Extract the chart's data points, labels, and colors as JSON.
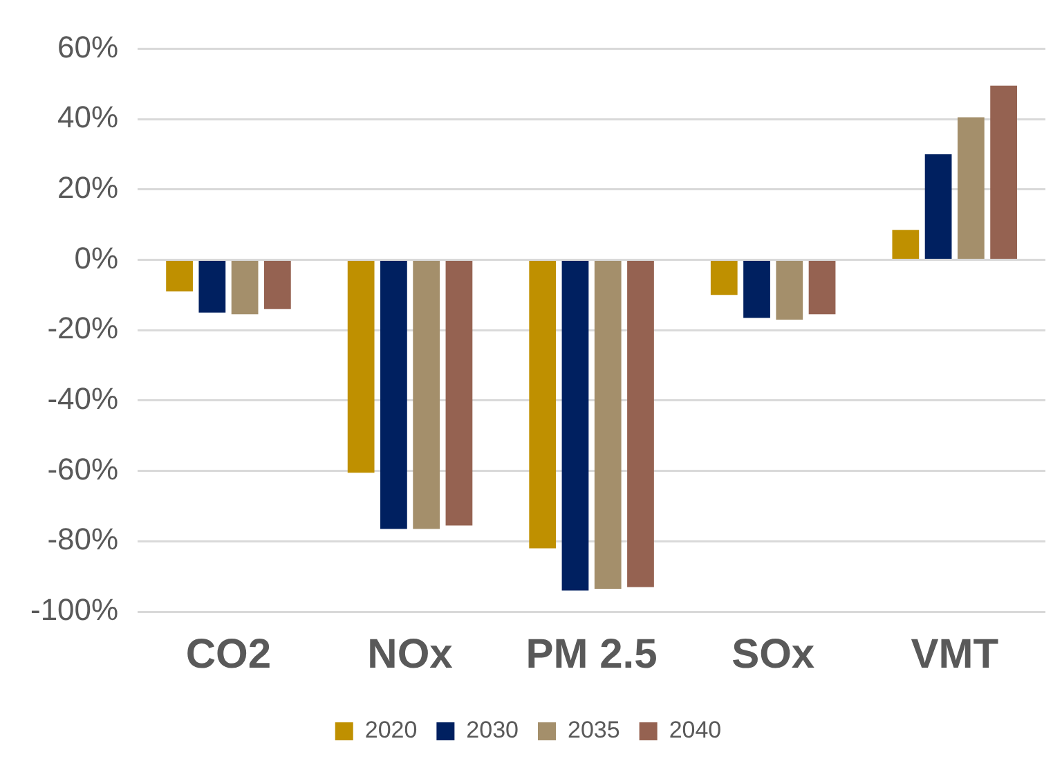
{
  "chart_data": {
    "type": "bar",
    "categories": [
      "CO2",
      "NOx",
      "PM 2.5",
      "SOx",
      "VMT"
    ],
    "series": [
      {
        "name": "2020",
        "color": "#bf9000",
        "values": [
          -9,
          -60.5,
          -82,
          -10,
          8.5
        ]
      },
      {
        "name": "2030",
        "color": "#002060",
        "values": [
          -15,
          -76.5,
          -94,
          -16.5,
          30
        ]
      },
      {
        "name": "2035",
        "color": "#a48f6b",
        "values": [
          -15.5,
          -76.5,
          -93.5,
          -17,
          40.5
        ]
      },
      {
        "name": "2040",
        "color": "#956251",
        "values": [
          -14,
          -75.5,
          -93,
          -15.5,
          49.5
        ]
      }
    ],
    "ylim": [
      -100,
      60
    ],
    "yticks": [
      {
        "value": -100,
        "label": "-100%"
      },
      {
        "value": -80,
        "label": "-80%"
      },
      {
        "value": -60,
        "label": "-60%"
      },
      {
        "value": -40,
        "label": "-40%"
      },
      {
        "value": -20,
        "label": "-20%"
      },
      {
        "value": 0,
        "label": "0%"
      },
      {
        "value": 20,
        "label": "20%"
      },
      {
        "value": 40,
        "label": "40%"
      },
      {
        "value": 60,
        "label": "60%"
      }
    ],
    "grid": "y",
    "legend": "bottom"
  }
}
